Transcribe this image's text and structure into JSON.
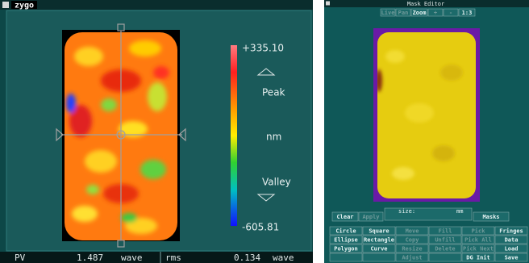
{
  "left_panel": {
    "title": "zygo",
    "colorbar": {
      "max": "+335.10",
      "peak": "Peak",
      "unit": "nm",
      "valley": "Valley",
      "min": "-605.81"
    },
    "stats": [
      {
        "label": "PV",
        "value": "1.487",
        "unit": "wave"
      },
      {
        "label": "rms",
        "value": "0.134",
        "unit": "wave"
      }
    ]
  },
  "mask_editor": {
    "title": "Mask Editor",
    "toolbar": [
      "Live",
      "Pan",
      "Zoom",
      "+",
      "-",
      "1:3"
    ],
    "controls": {
      "clear": "Clear",
      "apply": "Apply",
      "size": "size:",
      "unit": "mm",
      "masks": "Masks"
    },
    "buttons": [
      [
        "Circle",
        "Square",
        "Move",
        "Fill",
        "Pick",
        "Fringes"
      ],
      [
        "Ellipse",
        "Rectangle",
        "Copy",
        "Unfill",
        "Pick All",
        "Data"
      ],
      [
        "Polygon",
        "Curve",
        "Resize",
        "Delete",
        "Pick Next",
        "Load"
      ],
      [
        "Adjust",
        "DG Init",
        "Save"
      ]
    ]
  }
}
